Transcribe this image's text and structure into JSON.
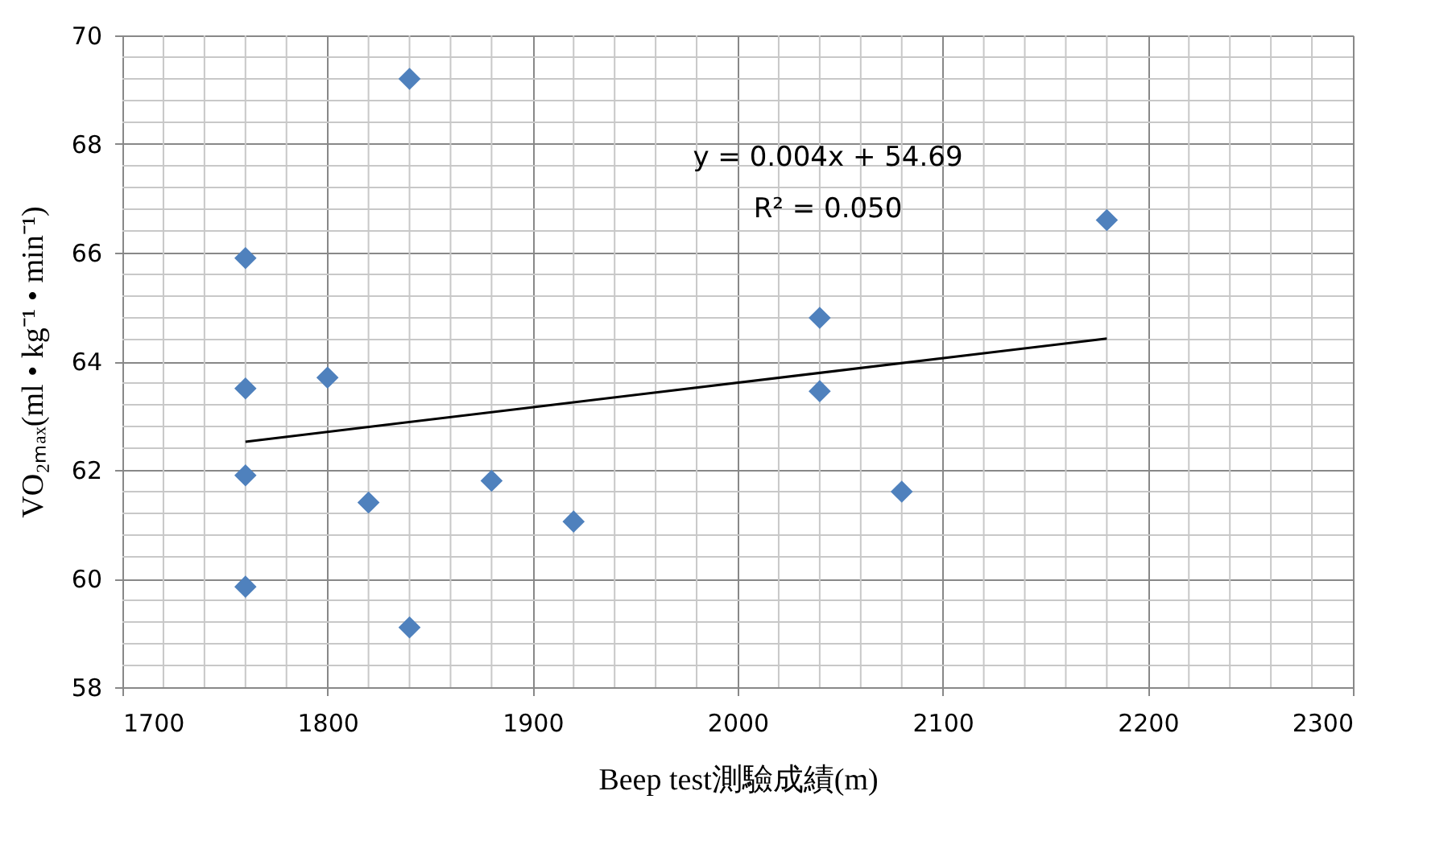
{
  "chart_data": {
    "type": "scatter",
    "xlabel": "Beep test測驗成績(m)",
    "ylabel": "VO₂ₘₐₓ(ml • kg⁻¹ • min⁻¹)",
    "xlim": [
      1700,
      2300
    ],
    "xticks": [
      1700,
      1800,
      1900,
      2000,
      2100,
      2200,
      2300
    ],
    "ylim": [
      58,
      70
    ],
    "yticks": [
      58,
      60,
      62,
      64,
      66,
      68,
      70
    ],
    "grid": true,
    "annotations": [
      "y = 0.004x + 54.69",
      "R² = 0.050"
    ],
    "series": [
      {
        "color": "#4f81bd",
        "marker": "diamond",
        "x": [
          1760,
          1760,
          1760,
          1760,
          1800,
          1820,
          1840,
          1840,
          1880,
          1920,
          2040,
          2040,
          2080,
          2180
        ],
        "values": [
          65.9,
          63.5,
          61.9,
          59.85,
          63.7,
          61.4,
          69.2,
          59.1,
          61.8,
          61.05,
          64.8,
          63.45,
          61.6,
          66.6
        ]
      },
      {
        "type": "line",
        "color": "#000000",
        "line_style": "solid",
        "marker": "none",
        "x": [
          1760,
          2180
        ],
        "values": [
          62.52,
          64.42
        ]
      }
    ]
  }
}
